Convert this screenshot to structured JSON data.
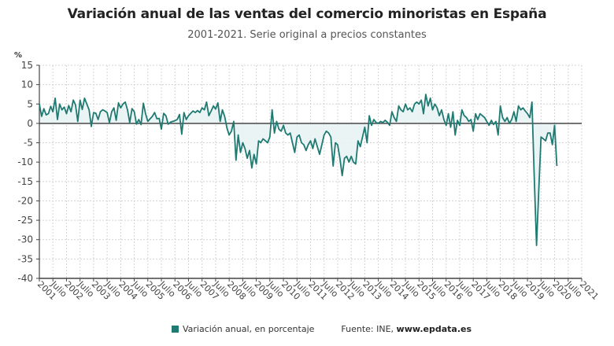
{
  "title": "Variación anual de las ventas del comercio minoristas en España",
  "subtitle": "2001-2021. Serie original a precios constantes",
  "legend": {
    "label": "Variación anual, en porcentaje",
    "color": "#1f7a72"
  },
  "source": {
    "prefix": "Fuente: INE, ",
    "site": "www.epdata.es"
  },
  "chart_data": {
    "type": "line",
    "title": "Variación anual de las ventas del comercio minoristas en España",
    "subtitle": "2001-2021. Serie original a precios constantes",
    "xlabel": "",
    "ylabel": "%",
    "ylim": [
      -40,
      15
    ],
    "yticks": [
      15,
      10,
      5,
      0,
      -5,
      -10,
      -15,
      -20,
      -25,
      -30,
      -35,
      -40
    ],
    "xlim": [
      "2001-01",
      "2021-01"
    ],
    "xticks": [
      "2001",
      "Julio",
      "2002",
      "Julio",
      "2003",
      "Julio",
      "2004",
      "Julio",
      "2005",
      "Julio",
      "2006",
      "Julio",
      "2007",
      "Julio",
      "2008",
      "Julio",
      "2009",
      "Julio",
      "2010",
      "Julio",
      "2011",
      "Julio",
      "2012",
      "Julio",
      "2013",
      "Julio",
      "2014",
      "Julio",
      "2015",
      "Julio",
      "2016",
      "Julio",
      "2017",
      "Julio",
      "2018",
      "Julio",
      "2019",
      "Julio",
      "2020",
      "Julio",
      "2021"
    ],
    "grid": true,
    "legend_position": "bottom",
    "line_color": "#1f7a72",
    "fill_color": "#e8f3f4",
    "series": [
      {
        "name": "Variación anual, en porcentaje",
        "start": "2001-01",
        "frequency": "monthly",
        "values": [
          5.0,
          1.8,
          3.8,
          2.2,
          2.5,
          4.4,
          3.0,
          6.5,
          1.0,
          5.0,
          3.5,
          4.2,
          2.5,
          4.6,
          3.0,
          6.0,
          4.8,
          0.5,
          6.0,
          3.6,
          6.5,
          5.0,
          3.5,
          -0.8,
          2.8,
          2.6,
          1.0,
          3.0,
          3.5,
          3.2,
          2.8,
          0.2,
          3.0,
          4.0,
          0.8,
          5.3,
          4.0,
          5.0,
          5.5,
          3.5,
          0.2,
          3.8,
          3.0,
          -0.2,
          1.0,
          -0.3,
          5.2,
          2.5,
          0.5,
          1.2,
          1.8,
          2.8,
          1.2,
          1.3,
          -1.5,
          2.6,
          2.0,
          -0.2,
          0.3,
          0.5,
          0.7,
          1.0,
          2.3,
          -2.8,
          2.8,
          1.0,
          2.0,
          2.6,
          3.2,
          2.8,
          3.3,
          2.8,
          4.0,
          3.5,
          5.5,
          2.0,
          3.2,
          4.5,
          3.7,
          5.3,
          0.5,
          3.5,
          1.8,
          -1.2,
          -3.0,
          -2.0,
          0.5,
          -9.5,
          -3.0,
          -7.5,
          -5.0,
          -6.5,
          -9.0,
          -7.0,
          -11.5,
          -8.0,
          -10.5,
          -4.5,
          -5.0,
          -4.0,
          -4.5,
          -5.0,
          -3.5,
          3.5,
          -2.5,
          0.5,
          -1.5,
          -2.0,
          -0.5,
          -2.5,
          -3.0,
          -2.5,
          -5.0,
          -7.5,
          -3.5,
          -3.0,
          -5.0,
          -5.5,
          -7.0,
          -5.5,
          -4.5,
          -6.5,
          -4.0,
          -6.0,
          -8.0,
          -5.5,
          -3.0,
          -2.0,
          -2.5,
          -3.5,
          -11.0,
          -5.0,
          -5.5,
          -9.0,
          -13.5,
          -9.0,
          -8.5,
          -10.0,
          -8.5,
          -10.0,
          -10.5,
          -4.5,
          -6.0,
          -3.5,
          -1.0,
          -5.0,
          2.0,
          -0.5,
          1.0,
          0.2,
          0.0,
          0.5,
          0.2,
          0.8,
          0.3,
          -0.5,
          3.0,
          1.5,
          0.5,
          4.5,
          3.5,
          3.0,
          5.0,
          3.5,
          4.0,
          3.0,
          5.0,
          5.5,
          5.0,
          6.0,
          2.5,
          7.5,
          4.5,
          6.5,
          3.5,
          5.0,
          4.0,
          2.0,
          3.5,
          1.0,
          -0.5,
          2.5,
          -1.0,
          3.0,
          -3.0,
          0.8,
          -0.5,
          3.5,
          2.0,
          1.5,
          0.5,
          1.0,
          -2.0,
          2.5,
          1.0,
          2.5,
          2.0,
          1.5,
          0.5,
          -0.5,
          0.8,
          -0.3,
          0.5,
          -3.0,
          4.5,
          1.5,
          0.5,
          1.5,
          0.0,
          1.0,
          3.0,
          0.5,
          4.5,
          3.5,
          4.0,
          3.2,
          2.5,
          1.5,
          5.5,
          -14.0,
          -31.5,
          -17.0,
          -3.5,
          -4.0,
          -4.5,
          -2.5,
          -2.5,
          -5.5,
          -0.5,
          -11.0
        ]
      }
    ]
  }
}
